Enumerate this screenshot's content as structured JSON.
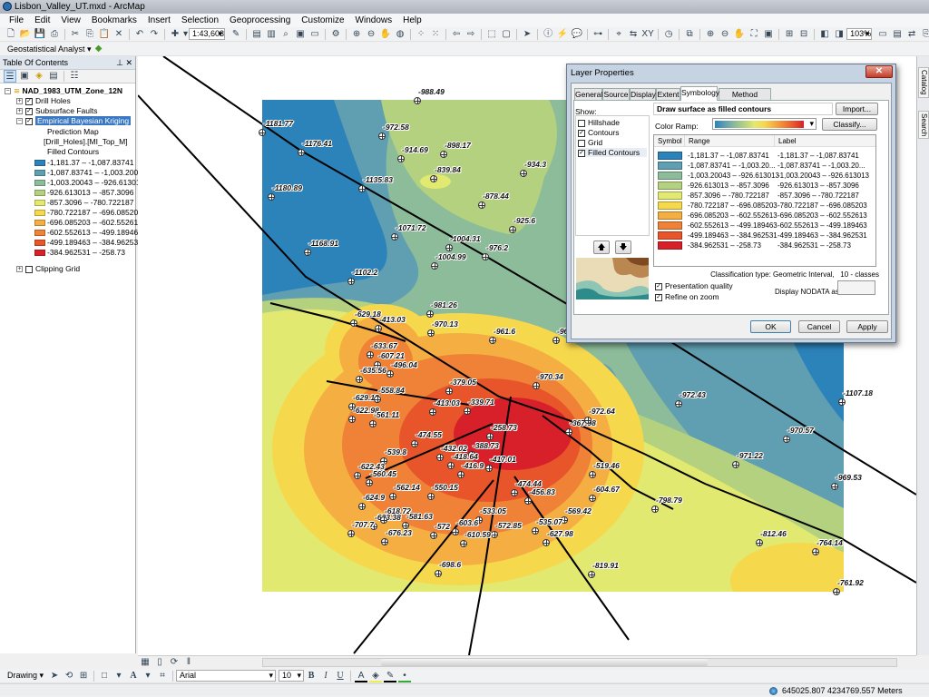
{
  "window": {
    "title": "Lisbon_Valley_UT.mxd - ArcMap"
  },
  "menu": [
    "File",
    "Edit",
    "View",
    "Bookmarks",
    "Insert",
    "Selection",
    "Geoprocessing",
    "Customize",
    "Windows",
    "Help"
  ],
  "toolbar_main": {
    "icons_a": [
      "new-document",
      "open",
      "save",
      "print",
      "sep",
      "cut",
      "copy",
      "paste",
      "delete",
      "sep",
      "undo",
      "redo",
      "sep",
      "add-data"
    ],
    "scale": "1:43,603",
    "icons_b": [
      "editor",
      "sep",
      "table-of-contents",
      "catalog",
      "search-window",
      "arctoolbox",
      "python",
      "sep",
      "model-builder",
      "sep",
      "zoom-in",
      "zoom-out",
      "pan",
      "full-extent",
      "sep",
      "fixed-zoom-in",
      "fixed-zoom-out",
      "sep",
      "back",
      "forward",
      "sep",
      "select-features",
      "clear-selection",
      "sep",
      "select-elements",
      "sep",
      "identify",
      "hyperlink",
      "html-popup",
      "sep",
      "measure",
      "sep",
      "find",
      "find-route",
      "go-to-xy",
      "sep",
      "time-slider",
      "sep",
      "create-viewer-window",
      "sep",
      "layout-zoom-in",
      "layout-zoom-out",
      "layout-pan",
      "layout-full-extent",
      "layout-actual-size",
      "sep",
      "layout-fixed-zoom-in",
      "layout-fixed-zoom-out",
      "sep",
      "layout-back",
      "layout-forward"
    ],
    "layout_zoom": "103%",
    "icons_c": [
      "toggle-draft-mode",
      "focus-data-frame",
      "change-layout",
      "data-driven-pages"
    ]
  },
  "toolbar_geo": {
    "label": "Geostatistical Analyst ▾"
  },
  "toc": {
    "title": "Table Of Contents",
    "dataframe": "NAD_1983_UTM_Zone_12N",
    "layers": [
      {
        "name": "Drill Holes",
        "checked": true
      },
      {
        "name": "Subsurface Faults",
        "checked": true
      },
      {
        "name": "Empirical Bayesian Kriging",
        "checked": true
      }
    ],
    "sublabels": [
      "Prediction Map",
      "[Drill_Holes].[MI_Top_M]",
      "Filled Contours"
    ],
    "legend": [
      "-1,181.37 – -1,087.83741",
      "-1,087.83741 – -1,003.20043",
      "-1,003.20043 – -926.613013",
      "-926.613013 – -857.3096",
      "-857.3096 – -780.722187",
      "-780.722187 – -696.085203",
      "-696.085203 – -602.552613",
      "-602.552613 – -499.189463",
      "-499.189463 – -384.962531",
      "-384.962531 – -258.73"
    ],
    "clipping": {
      "name": "Clipping Grid",
      "checked": false
    }
  },
  "colors": [
    "#2b83ba",
    "#5f9fb1",
    "#8cbc9a",
    "#b4d17f",
    "#e2e970",
    "#f6d84d",
    "#f5ae42",
    "#ef8236",
    "#e8552b",
    "#d8202a"
  ],
  "map": {
    "points": [
      "-988.49",
      "-1181.77",
      "-972.58",
      "-1176.41",
      "-914.69",
      "-898.17",
      "-839.84",
      "-934.3",
      "-1135.83",
      "-1180.89",
      "-878.44",
      "-925.6",
      "-1071.72",
      "-1004.31",
      "-976.2",
      "-1168.91",
      "-1004.99",
      "-1102.2",
      "-981.26",
      "-629.18",
      "-413.03",
      "-970.13",
      "-961.6",
      "-963.03",
      "-633.67",
      "-607.21",
      "-496.04",
      "-635.56",
      "-379.05",
      "-970.34",
      "-629.18",
      "-558.84",
      "-413.03",
      "-339.71",
      "-622.98",
      "-561.11",
      "-258.73",
      "-474.55",
      "-367.98",
      "-972.64",
      "-432.02",
      "-388.73",
      "-539.8",
      "-418.64",
      "-417.01",
      "-416.9",
      "-519.46",
      "-622.43",
      "-560.45",
      "-474.44",
      "-456.83",
      "-562.14",
      "-550.15",
      "-604.67",
      "-624.9",
      "-633.38",
      "-618.72",
      "-569.42",
      "-533.05",
      "-535.07",
      "-581.63",
      "-572.85",
      "-603.6",
      "-707.7",
      "-676.23",
      "-572",
      "-610.59",
      "-627.98",
      "-698.6",
      "-819.91",
      "-972.43",
      "-1107.18",
      "-970.57",
      "-971.22",
      "-969.53",
      "-798.79",
      "-812.46",
      "-764.14",
      "-761.92"
    ]
  },
  "right_dock": [
    "Catalog",
    "Search"
  ],
  "dialog": {
    "title": "Layer Properties",
    "tabs": [
      "General",
      "Source",
      "Display",
      "Extent",
      "Symbology",
      "Method Summary"
    ],
    "selected_tab": "Symbology",
    "show_label": "Show:",
    "show_items": [
      {
        "label": "Hillshade",
        "checked": false
      },
      {
        "label": "Contours",
        "checked": true
      },
      {
        "label": "Grid",
        "checked": false
      },
      {
        "label": "Filled Contours",
        "checked": true
      }
    ],
    "heading": "Draw surface as filled contours",
    "import_label": "Import...",
    "color_ramp_label": "Color Ramp:",
    "classify_label": "Classify...",
    "columns": [
      "Symbol",
      "Range",
      "Label"
    ],
    "rows": [
      {
        "range": "-1,181.37 – -1,087.83741",
        "label": "-1,181.37 – -1,087.83741"
      },
      {
        "range": "-1,087.83741 – -1,003.20...",
        "label": "-1,087.83741 – -1,003.20..."
      },
      {
        "range": "-1,003.20043 – -926.613013",
        "label": "-1,003.20043 – -926.613013"
      },
      {
        "range": "-926.613013 – -857.3096",
        "label": "-926.613013 – -857.3096"
      },
      {
        "range": "-857.3096 – -780.722187",
        "label": "-857.3096 – -780.722187"
      },
      {
        "range": "-780.722187 – -696.085203",
        "label": "-780.722187 – -696.085203"
      },
      {
        "range": "-696.085203 – -602.552613",
        "label": "-696.085203 – -602.552613"
      },
      {
        "range": "-602.552613 – -499.189463",
        "label": "-602.552613 – -499.189463"
      },
      {
        "range": "-499.189463 – -384.962531",
        "label": "-499.189463 – -384.962531"
      },
      {
        "range": "-384.962531 – -258.73",
        "label": "-384.962531 – -258.73"
      }
    ],
    "classification": "Classification type: Geometric Interval,   10 - classes",
    "presentation_quality": "Presentation quality",
    "refine_on_zoom": "Refine on zoom",
    "nodata_label": "Display NODATA as:",
    "ok": "OK",
    "cancel": "Cancel",
    "apply": "Apply"
  },
  "drawing_toolbar": {
    "label": "Drawing ▾",
    "font": "Arial",
    "size": "10",
    "bold": "B",
    "italic": "I",
    "underline": "U"
  },
  "status": {
    "coords": "645025.807  4234769.557 Meters"
  }
}
